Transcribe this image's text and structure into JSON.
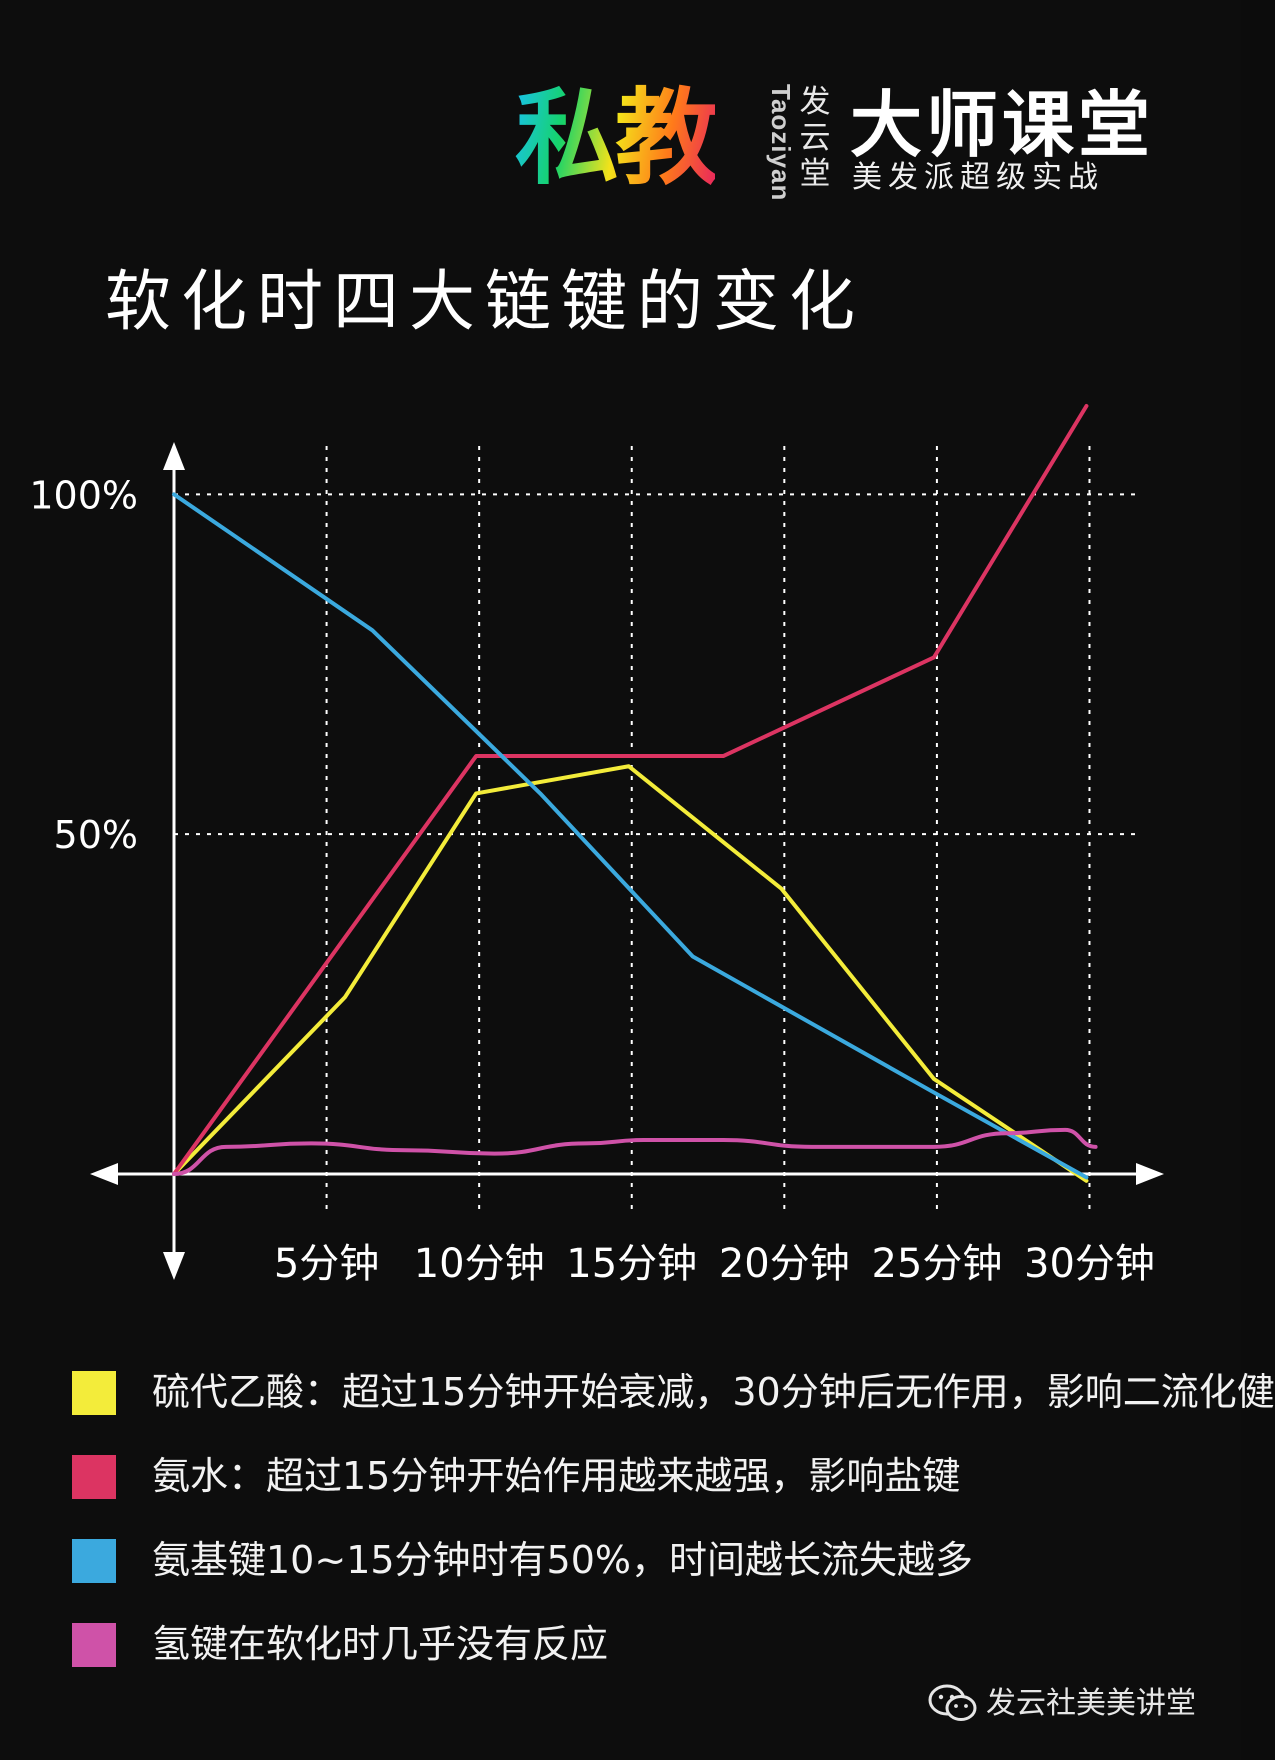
{
  "brand": {
    "logo_text": "私教",
    "latin_vertical": "Taoziyan",
    "org_vertical": "发云堂",
    "main_title": "大师课堂",
    "subtitle": "美发派超级实战"
  },
  "page_title": "软化时四大链键的变化",
  "chart_data": {
    "type": "line",
    "title": "软化时四大链键的变化",
    "x_tick_labels": [
      "5分钟",
      "10分钟",
      "15分钟",
      "20分钟",
      "25分钟",
      "30分钟"
    ],
    "x_ticks": [
      5,
      10,
      15,
      20,
      25,
      30
    ],
    "y_tick_labels": [
      "100%",
      "50%"
    ],
    "y_ticks": [
      100,
      50
    ],
    "xlim": [
      0,
      31
    ],
    "ylim": [
      0,
      108
    ],
    "grid": true,
    "series": [
      {
        "name": "硫代乙酸",
        "color": "#f3ec3a",
        "points": [
          [
            0,
            0
          ],
          [
            5.6,
            26
          ],
          [
            9.9,
            56
          ],
          [
            14.9,
            60
          ],
          [
            19.9,
            42
          ],
          [
            24.9,
            14
          ],
          [
            29.9,
            -1
          ]
        ]
      },
      {
        "name": "氨水",
        "color": "#dc3462",
        "points": [
          [
            0,
            0
          ],
          [
            9.9,
            61.5
          ],
          [
            18,
            61.5
          ],
          [
            24.9,
            76
          ],
          [
            29.9,
            113
          ]
        ]
      },
      {
        "name": "氨基键",
        "color": "#3ba9de",
        "points": [
          [
            0,
            100
          ],
          [
            6.5,
            80
          ],
          [
            12,
            56
          ],
          [
            17,
            32
          ],
          [
            24.9,
            12
          ],
          [
            29.9,
            -0.5
          ]
        ]
      },
      {
        "name": "氢键",
        "color": "#cf52a8",
        "points": [
          [
            0,
            0
          ],
          [
            1.7,
            4
          ],
          [
            4.5,
            4.5
          ],
          [
            7.6,
            3.5
          ],
          [
            10.5,
            3
          ],
          [
            13.5,
            4.5
          ],
          [
            15.4,
            5
          ],
          [
            18,
            5
          ],
          [
            20.9,
            4
          ],
          [
            24.9,
            4
          ],
          [
            27.3,
            6
          ],
          [
            29.2,
            6.5
          ],
          [
            30.2,
            4
          ]
        ]
      }
    ]
  },
  "legend": [
    {
      "color": "#f3ec3a",
      "text": "硫代乙酸：超过15分钟开始衰减，30分钟后无作用，影响二流化健"
    },
    {
      "color": "#dc3462",
      "text": "氨水：超过15分钟开始作用越来越强，影响盐键"
    },
    {
      "color": "#3ba9de",
      "text": "氨基键10~15分钟时有50%，时间越长流失越多"
    },
    {
      "color": "#cf52a8",
      "text": "氢键在软化时几乎没有反应"
    }
  ],
  "watermark": {
    "icon": "wechat-icon",
    "text": "发云社美美讲堂"
  }
}
